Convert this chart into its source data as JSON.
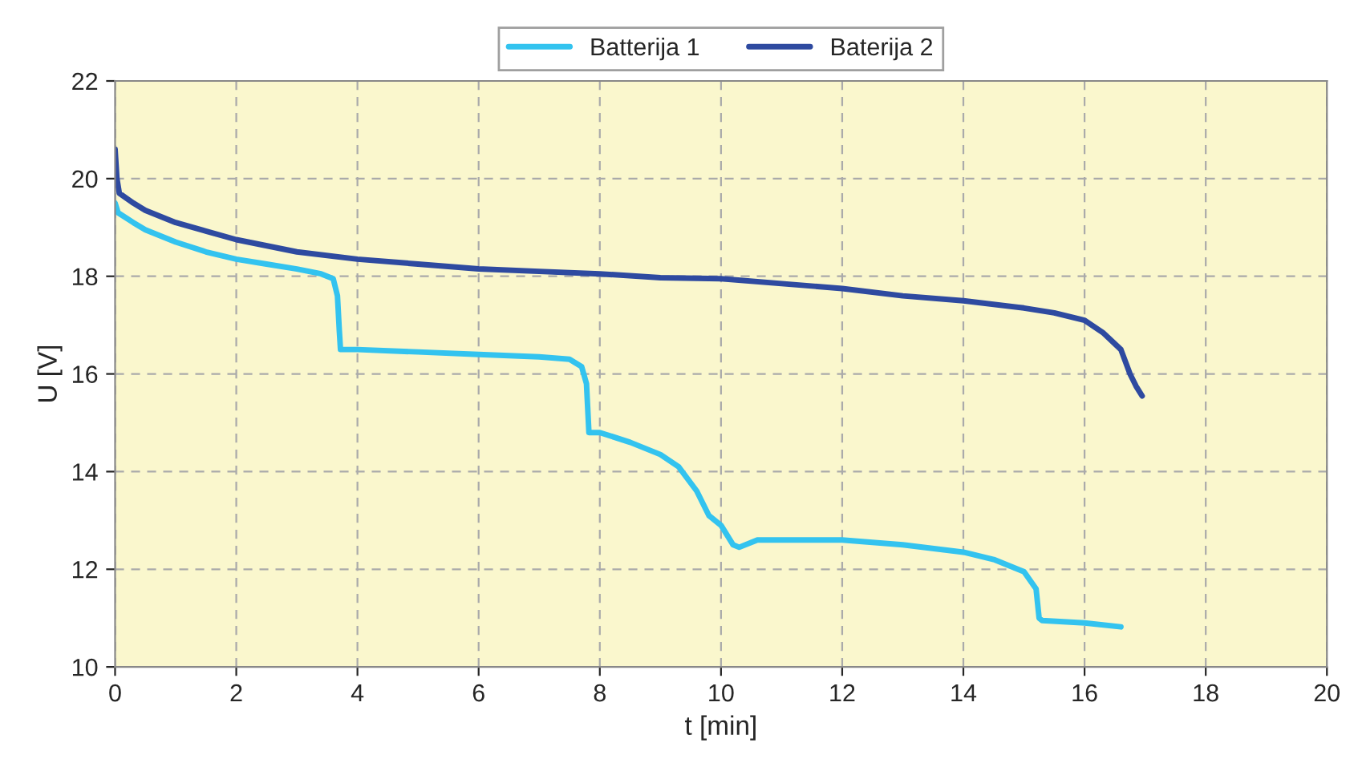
{
  "chart_data": {
    "type": "line",
    "xlabel": "t [min]",
    "ylabel": "U [V]",
    "xlim": [
      0,
      20
    ],
    "ylim": [
      10,
      22
    ],
    "xticks": [
      0,
      2,
      4,
      6,
      8,
      10,
      12,
      14,
      16,
      18,
      20
    ],
    "yticks": [
      10,
      12,
      14,
      16,
      18,
      20,
      22
    ],
    "grid": true,
    "legend": "top",
    "marker": "none",
    "line_style": "solid",
    "series": [
      {
        "name": "Batterija 1",
        "color": "#33c3ef",
        "x": [
          0,
          0.05,
          0.3,
          0.5,
          1,
          1.5,
          2,
          2.5,
          3,
          3.4,
          3.6,
          3.67,
          3.7,
          3.72,
          4,
          5,
          6,
          7,
          7.5,
          7.7,
          7.78,
          7.82,
          8,
          8.5,
          9,
          9.3,
          9.6,
          9.8,
          10,
          10.2,
          10.3,
          10.6,
          11,
          12,
          13,
          14,
          14.5,
          15,
          15.2,
          15.25,
          15.3,
          16,
          16.6
        ],
        "values": [
          19.5,
          19.3,
          19.1,
          18.95,
          18.7,
          18.5,
          18.35,
          18.25,
          18.15,
          18.05,
          17.95,
          17.6,
          16.9,
          16.5,
          16.5,
          16.45,
          16.4,
          16.35,
          16.3,
          16.15,
          15.8,
          14.8,
          14.8,
          14.6,
          14.35,
          14.1,
          13.6,
          13.1,
          12.9,
          12.5,
          12.45,
          12.6,
          12.6,
          12.6,
          12.5,
          12.35,
          12.2,
          11.95,
          11.6,
          11.0,
          10.95,
          10.9,
          10.82
        ]
      },
      {
        "name": "Baterija 2",
        "color": "#2e4aa0",
        "x": [
          0,
          0.03,
          0.07,
          0.3,
          0.5,
          1,
          2,
          3,
          4,
          5,
          6,
          7,
          8,
          9,
          10,
          11,
          12,
          13,
          14,
          15,
          15.5,
          16,
          16.3,
          16.6,
          16.75,
          16.85,
          16.95
        ],
        "values": [
          20.6,
          20.0,
          19.7,
          19.5,
          19.35,
          19.1,
          18.75,
          18.5,
          18.35,
          18.25,
          18.15,
          18.1,
          18.05,
          17.97,
          17.95,
          17.85,
          17.75,
          17.6,
          17.5,
          17.35,
          17.25,
          17.1,
          16.85,
          16.5,
          16.0,
          15.75,
          15.55
        ]
      }
    ]
  }
}
